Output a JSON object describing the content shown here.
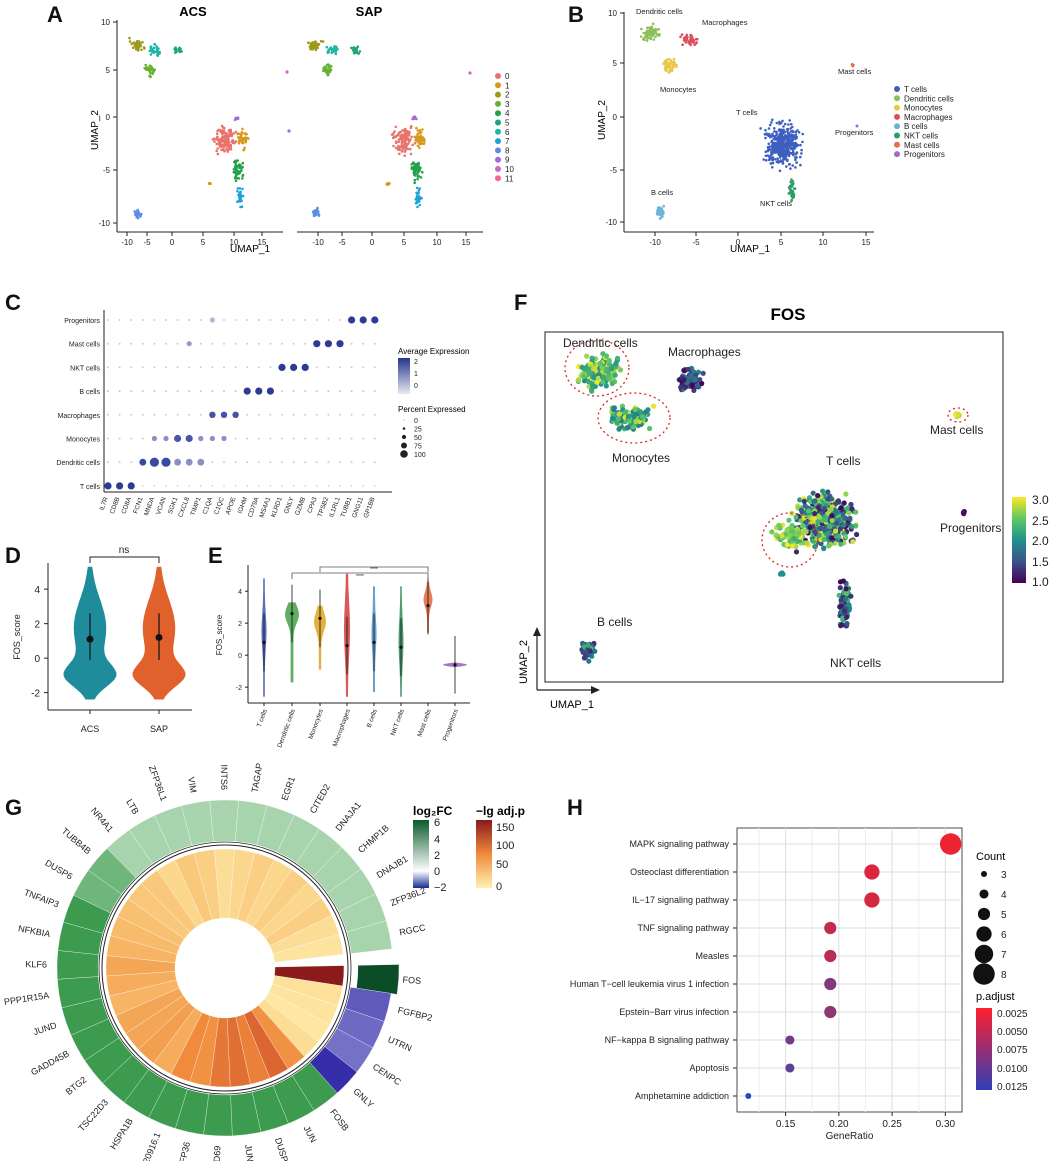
{
  "figure": {
    "panel_letters": [
      "A",
      "B",
      "C",
      "D",
      "E",
      "F",
      "G",
      "H"
    ]
  },
  "colors": {
    "clusters": [
      "#E8736C",
      "#D89A1E",
      "#9C9A1A",
      "#66B032",
      "#21A24A",
      "#1CA67A",
      "#1FB6A6",
      "#1EA3D6",
      "#5B8FE0",
      "#A06BD8",
      "#D365C4",
      "#F0679E"
    ],
    "celltypes": [
      "#3F5FBF",
      "#8BBF5A",
      "#E7C84A",
      "#D9515F",
      "#6CB3D6",
      "#2F9D6A",
      "#E6704A",
      "#A06AC8"
    ],
    "violin_ds": [
      "#1E8C9A",
      "#E0612C"
    ],
    "violin_e": [
      "#3D52A8",
      "#43A047",
      "#E1A21E",
      "#D33B3B",
      "#4A90C8",
      "#2E8B57",
      "#E2683B",
      "#9B59B6"
    ]
  },
  "panelA": {
    "titles": [
      "ACS",
      "SAP"
    ],
    "xlabel": "UMAP_1",
    "ylabel": "UMAP_2",
    "xticks": [
      "-10",
      "-5",
      "0",
      "5",
      "10",
      "15"
    ],
    "yticks": [
      "10",
      "5",
      "0",
      "-5",
      "-10"
    ],
    "legend": [
      "0",
      "1",
      "2",
      "3",
      "4",
      "5",
      "6",
      "7",
      "8",
      "9",
      "10",
      "11"
    ]
  },
  "panelB": {
    "xlabel": "UMAP_1",
    "ylabel": "UMAP_2",
    "xticks": [
      "-10",
      "-5",
      "0",
      "5",
      "10",
      "15"
    ],
    "yticks": [
      "10",
      "5",
      "0",
      "-5",
      "-10"
    ],
    "labels": [
      "Dendritic cells",
      "Macrophages",
      "Monocytes",
      "T cells",
      "Mast cells",
      "Progenitors",
      "B cells",
      "NKT cells"
    ],
    "legend": [
      "T cells",
      "Dendritic cells",
      "Monocytes",
      "Macrophages",
      "B cells",
      "NKT cells",
      "Mast cells",
      "Progenitors"
    ]
  },
  "chart_data": [
    {
      "panel": "C",
      "type": "dotplot",
      "rows": [
        "Progenitors",
        "Mast cells",
        "NKT cells",
        "B cells",
        "Macrophages",
        "Monocytes",
        "Dendritic cells",
        "T cells"
      ],
      "genes": [
        "IL7R",
        "CD8B",
        "CD8A",
        "FCN1",
        "MNDA",
        "VCAN",
        "SGK1",
        "CXCL8",
        "TIMP1",
        "C1QA",
        "C1QC",
        "APOE",
        "IGHM",
        "CD79A",
        "MS4A1",
        "KLRD1",
        "GNLY",
        "GZMB",
        "CPA3",
        "TPSB2",
        "IL1RL1",
        "TUBB1",
        "GNG11",
        "GP1BB"
      ],
      "color_title": "Average Expression",
      "color_ticks": [
        "2",
        "1",
        "0"
      ],
      "size_title": "Percent Expressed",
      "size_ticks": [
        "0",
        "25",
        "50",
        "75",
        "100"
      ]
    },
    {
      "panel": "D",
      "type": "violin",
      "categories": [
        "ACS",
        "SAP"
      ],
      "medians": [
        1.1,
        1.2
      ],
      "q1": [
        -0.1,
        -0.1
      ],
      "q3": [
        2.6,
        2.6
      ],
      "ylabel": "FOS_score",
      "ylim": [
        -2.6,
        5.4
      ],
      "yticks": [
        "4",
        "2",
        "0",
        "-2"
      ],
      "significance": "ns"
    },
    {
      "panel": "E",
      "type": "violin",
      "categories": [
        "T cells",
        "Dendritic cells",
        "Monocytes",
        "Macrophages",
        "B cells",
        "NKT cells",
        "Mast cells",
        "Progenitors"
      ],
      "medians": [
        0.8,
        2.6,
        2.3,
        0.6,
        0.8,
        0.5,
        3.1,
        -0.6
      ],
      "ylabel": "FOS_score",
      "ylim": [
        -2.8,
        5.2
      ],
      "yticks": [
        "4",
        "2",
        "0",
        "-2"
      ],
      "significance": [
        "****",
        "****"
      ]
    },
    {
      "panel": "F",
      "type": "scatter",
      "title": "FOS",
      "xlabel": "UMAP_1",
      "ylabel": "UMAP_2",
      "labels": [
        "Dendritic cells",
        "Macrophages",
        "Monocytes",
        "Mast cells",
        "T cells",
        "Progenitors",
        "B cells",
        "NKT cells"
      ],
      "colorbar_ticks": [
        "3.0",
        "2.5",
        "2.0",
        "1.5",
        "1.0"
      ],
      "color_range": [
        1.0,
        3.0
      ]
    },
    {
      "panel": "G",
      "type": "circular_heatmap",
      "genes": [
        "FOS",
        "FGFBP2",
        "UTRN",
        "CENPC",
        "GNLY",
        "FOSB",
        "JUN",
        "DUSP1",
        "JUNB",
        "CD69",
        "ZFP36",
        "AC020916.1",
        "HSPA1B",
        "TSC22D3",
        "BTG2",
        "GADD45B",
        "JUND",
        "PPP1R15A",
        "KLF6",
        "NFKBIA",
        "TNFAIP3",
        "DUSP6",
        "TUBB4B",
        "NR4A1",
        "LTB",
        "ZFP36L1",
        "VIM",
        "INTS6",
        "TAGAP",
        "EGR1",
        "CITED2",
        "DNAJA1",
        "CHMP1B",
        "DNAJB1",
        "ZFP36L2",
        "RGCC"
      ],
      "log2fc": [
        6.2,
        -1.2,
        -1.0,
        -0.9,
        -1.8,
        1.6,
        1.5,
        1.4,
        1.6,
        1.5,
        1.5,
        1.5,
        1.4,
        1.5,
        1.3,
        1.3,
        1.3,
        1.3,
        1.2,
        1.2,
        1.2,
        1.0,
        1.0,
        0.9,
        0.9,
        0.9,
        0.9,
        0.8,
        0.8,
        0.8,
        0.8,
        0.8,
        0.7,
        0.7,
        0.7,
        0.6
      ],
      "neglog_padj": [
        150,
        12,
        10,
        8,
        15,
        70,
        95,
        80,
        90,
        85,
        70,
        75,
        50,
        60,
        55,
        55,
        45,
        50,
        55,
        45,
        40,
        35,
        30,
        30,
        20,
        30,
        25,
        15,
        20,
        25,
        20,
        25,
        20,
        25,
        15,
        10
      ],
      "fc_title": "log₂FC",
      "fc_ticks": [
        "6",
        "4",
        "2",
        "0",
        "−2"
      ],
      "p_title": "−lg adj.p",
      "p_ticks": [
        "150",
        "100",
        "50",
        "0"
      ]
    },
    {
      "panel": "H",
      "type": "dotplot",
      "pathways": [
        "MAPK signaling pathway",
        "Osteoclast differentiation",
        "IL−17 signaling pathway",
        "TNF signaling pathway",
        "Measles",
        "Human T−cell leukemia virus 1 infection",
        "Epstein−Barr virus infection",
        "NF−kappa B signaling pathway",
        "Apoptosis",
        "Amphetamine addiction"
      ],
      "gene_ratio": [
        0.305,
        0.231,
        0.231,
        0.192,
        0.192,
        0.192,
        0.192,
        0.154,
        0.154,
        0.115
      ],
      "count": [
        8,
        6,
        6,
        5,
        5,
        5,
        5,
        4,
        4,
        3
      ],
      "p_adjust": [
        0.0008,
        0.002,
        0.0022,
        0.0035,
        0.004,
        0.0075,
        0.0068,
        0.009,
        0.01,
        0.0135
      ],
      "xlabel": "GeneRatio",
      "xticks": [
        "0.15",
        "0.20",
        "0.25",
        "0.30"
      ],
      "count_title": "Count",
      "count_ticks": [
        "3",
        "4",
        "5",
        "6",
        "7",
        "8"
      ],
      "padj_title": "p.adjust",
      "padj_ticks": [
        "0.0025",
        "0.0050",
        "0.0075",
        "0.0100",
        "0.0125"
      ]
    }
  ]
}
